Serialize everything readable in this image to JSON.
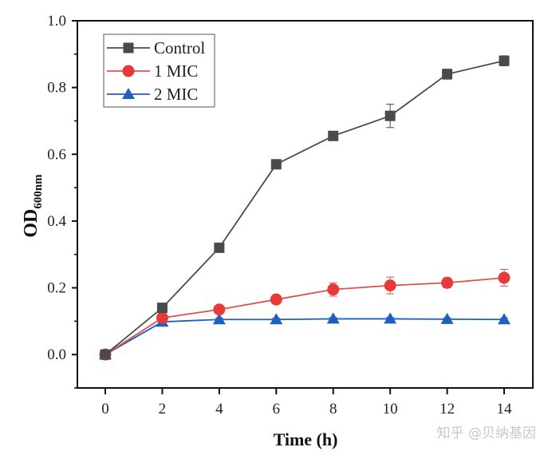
{
  "chart_data": {
    "type": "line",
    "title": "",
    "xlabel": "Time (h)",
    "ylabel": "OD",
    "ylabel_subscript": "600nm",
    "x": [
      0,
      2,
      4,
      6,
      8,
      10,
      12,
      14
    ],
    "xlim": [
      -1,
      15
    ],
    "ylim": [
      -0.1,
      1.0
    ],
    "xticks": [
      0,
      2,
      4,
      6,
      8,
      10,
      12,
      14
    ],
    "xtick_labels": [
      "0",
      "2",
      "4",
      "6",
      "8",
      "10",
      "12",
      "14"
    ],
    "yticks": [
      0.0,
      0.2,
      0.4,
      0.6,
      0.8,
      1.0
    ],
    "ytick_labels": [
      "0.0",
      "0.2",
      "0.4",
      "0.6",
      "0.8",
      "1.0"
    ],
    "yminor_ticks": [
      -0.1,
      0.1,
      0.3,
      0.5,
      0.7,
      0.9
    ],
    "grid": false,
    "legend_position": "top-left",
    "series": [
      {
        "name": "Control",
        "color": "#4a4a4a",
        "line_color": "#4a4a4a",
        "marker": "square",
        "values": [
          0.0,
          0.14,
          0.32,
          0.57,
          0.655,
          0.715,
          0.84,
          0.88
        ],
        "errors": [
          0.005,
          0.01,
          0.01,
          0.01,
          0.008,
          0.035,
          0.015,
          0.015
        ]
      },
      {
        "name": "1 MIC",
        "color": "#e8393a",
        "line_color": "#e05050",
        "marker": "circle",
        "values": [
          0.0,
          0.11,
          0.135,
          0.165,
          0.195,
          0.207,
          0.215,
          0.23
        ],
        "errors": [
          0.005,
          0.008,
          0.008,
          0.008,
          0.02,
          0.025,
          0.015,
          0.025
        ]
      },
      {
        "name": "2 MIC",
        "color": "#1f5fbf",
        "line_color": "#1f5fbf",
        "marker": "triangle",
        "values": [
          0.0,
          0.098,
          0.105,
          0.105,
          0.107,
          0.107,
          0.106,
          0.105
        ],
        "errors": [
          0.003,
          0.004,
          0.004,
          0.004,
          0.004,
          0.004,
          0.004,
          0.004
        ]
      }
    ]
  },
  "watermark": "知乎 @贝纳基因"
}
